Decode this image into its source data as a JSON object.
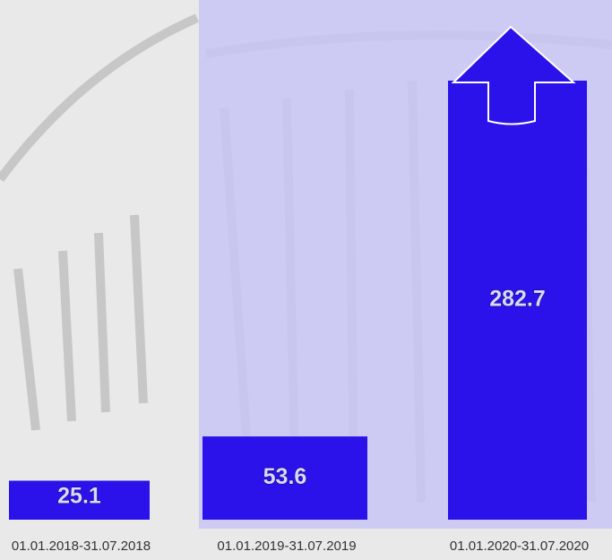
{
  "chart_data": {
    "type": "bar",
    "categories": [
      "01.01.2018-31.07.2018",
      "01.01.2019-31.07.2019",
      "01.01.2020-31.07.2020"
    ],
    "values": [
      25.1,
      53.6,
      282.7
    ],
    "color": "#2b12ea"
  }
}
